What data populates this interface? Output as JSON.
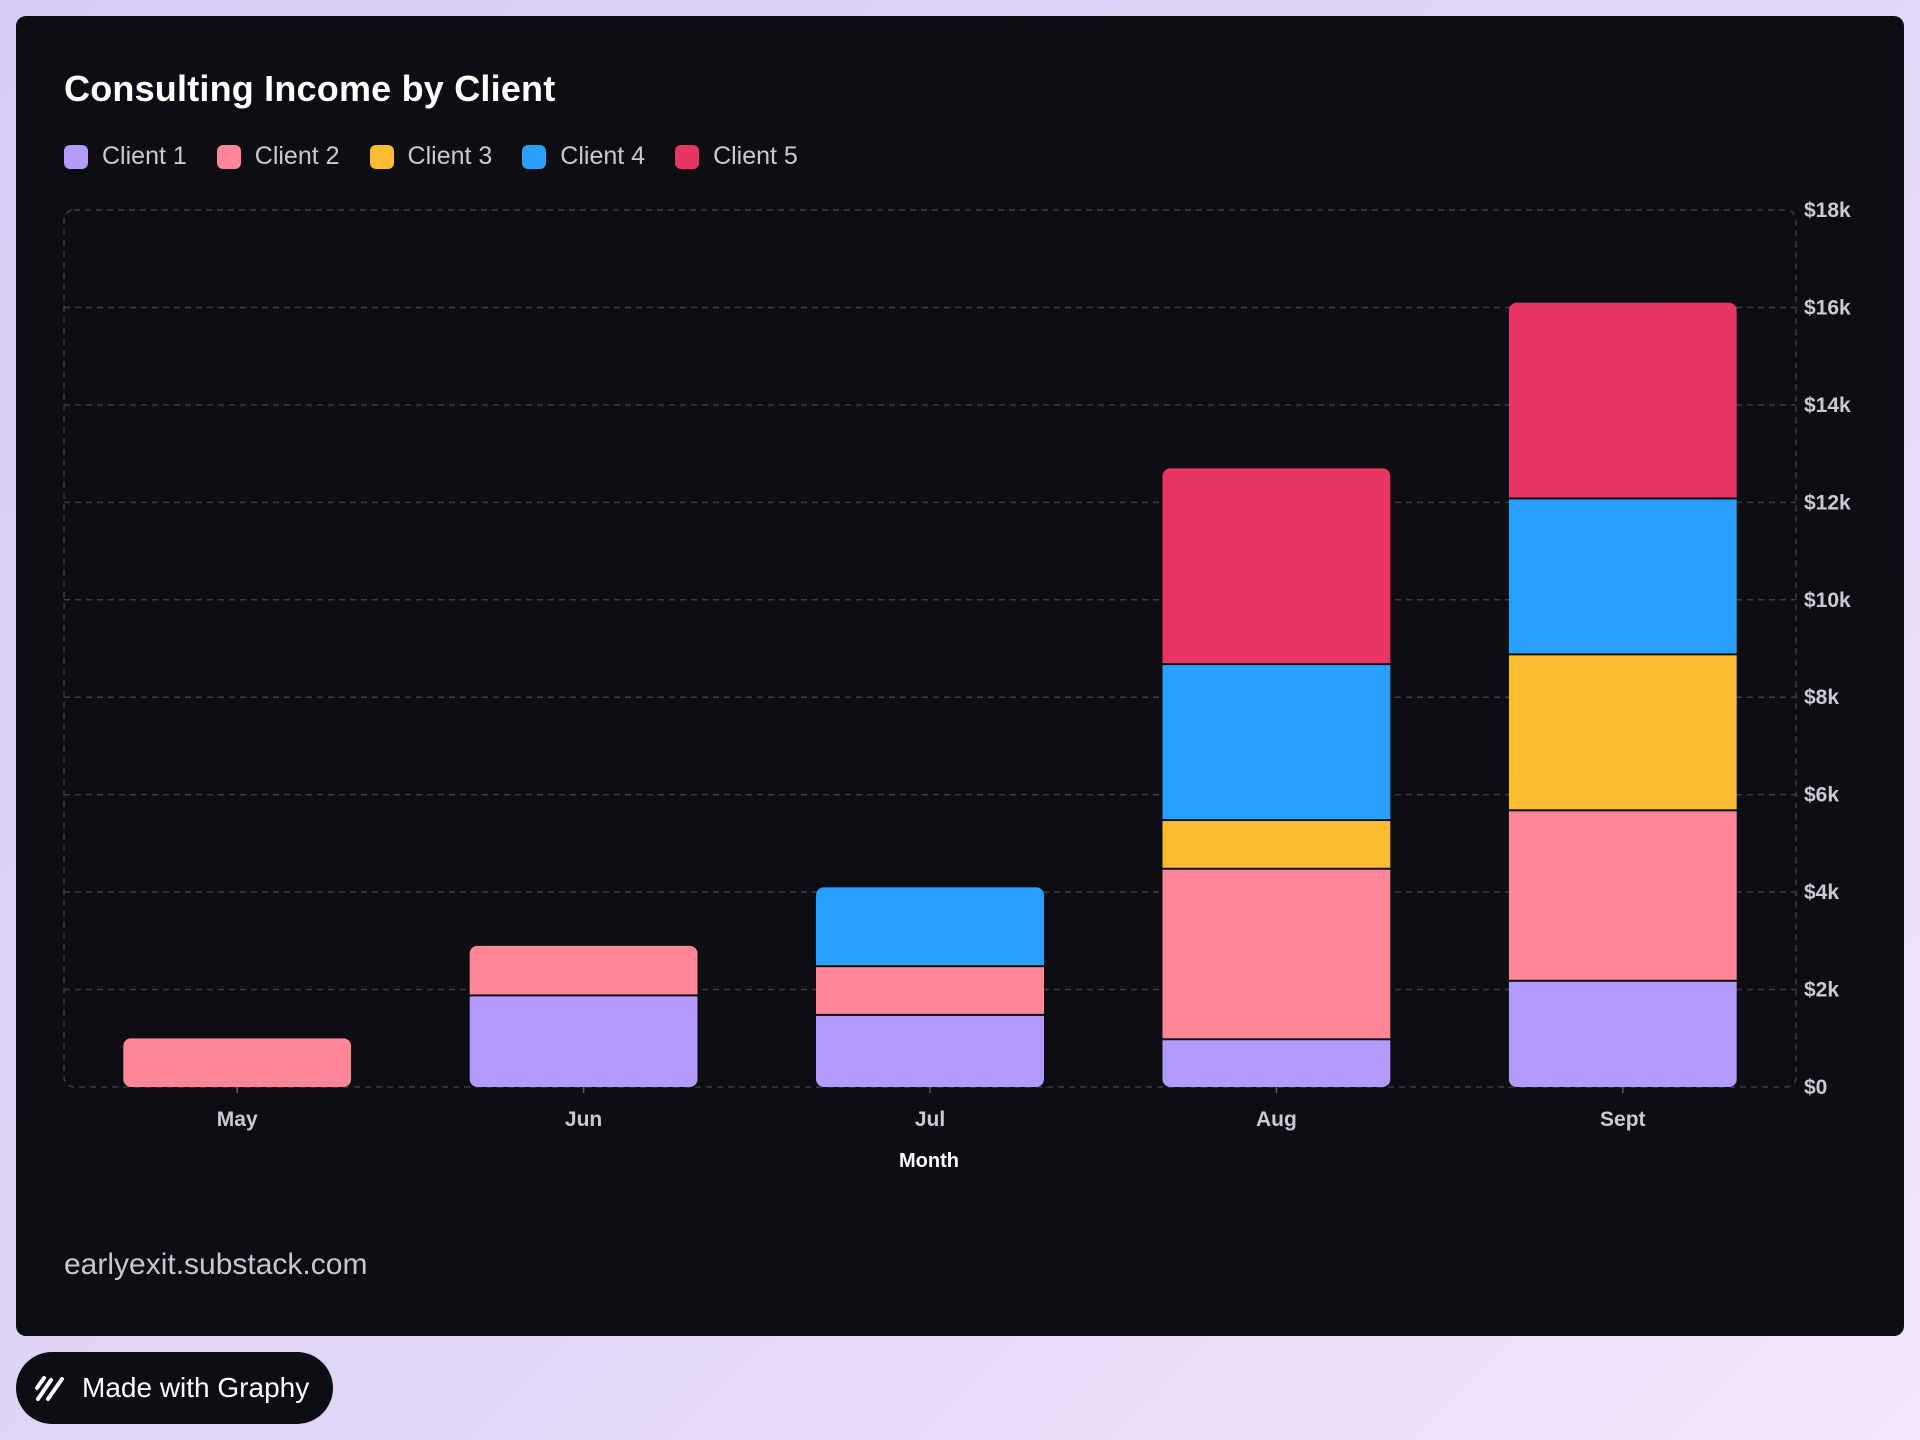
{
  "chart_data": {
    "type": "bar",
    "stacked": true,
    "title": "Consulting Income by Client",
    "xlabel": "Month",
    "ylabel": "",
    "categories": [
      "May",
      "Jun",
      "Jul",
      "Aug",
      "Sept"
    ],
    "ylim": [
      0,
      18000
    ],
    "yticks": [
      0,
      2000,
      4000,
      6000,
      8000,
      10000,
      12000,
      14000,
      16000,
      18000
    ],
    "ytick_labels": [
      "$0",
      "$2k",
      "$4k",
      "$6k",
      "$8k",
      "$10k",
      "$12k",
      "$14k",
      "$16k",
      "$18k"
    ],
    "y_axis_position": "right",
    "grid": true,
    "legend_position": "top-left",
    "series": [
      {
        "name": "Client 1",
        "color": "#b39afd",
        "values": [
          0,
          1900,
          1500,
          1000,
          2200
        ]
      },
      {
        "name": "Client 2",
        "color": "#ff8796",
        "values": [
          1000,
          1000,
          1000,
          3500,
          3500
        ]
      },
      {
        "name": "Client 3",
        "color": "#fbbc30",
        "values": [
          0,
          0,
          0,
          1000,
          3200
        ]
      },
      {
        "name": "Client 4",
        "color": "#299ffe",
        "values": [
          0,
          0,
          1600,
          3200,
          3200
        ]
      },
      {
        "name": "Client 5",
        "color": "#e83563",
        "values": [
          0,
          0,
          0,
          4000,
          4000
        ]
      }
    ]
  },
  "footer": {
    "source": "earlyexit.substack.com"
  },
  "badge": {
    "label": "Made with Graphy",
    "icon": "graphy-logo-icon"
  }
}
